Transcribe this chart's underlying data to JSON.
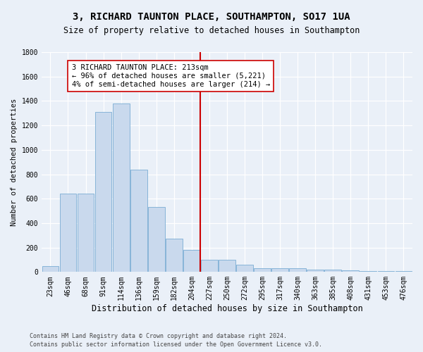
{
  "title1": "3, RICHARD TAUNTON PLACE, SOUTHAMPTON, SO17 1UA",
  "title2": "Size of property relative to detached houses in Southampton",
  "xlabel": "Distribution of detached houses by size in Southampton",
  "ylabel": "Number of detached properties",
  "categories": [
    "23sqm",
    "46sqm",
    "68sqm",
    "91sqm",
    "114sqm",
    "136sqm",
    "159sqm",
    "182sqm",
    "204sqm",
    "227sqm",
    "250sqm",
    "272sqm",
    "295sqm",
    "317sqm",
    "340sqm",
    "363sqm",
    "385sqm",
    "408sqm",
    "431sqm",
    "453sqm",
    "476sqm"
  ],
  "values": [
    50,
    640,
    640,
    1310,
    1380,
    840,
    530,
    270,
    180,
    100,
    100,
    60,
    30,
    30,
    30,
    20,
    20,
    15,
    10,
    10,
    10
  ],
  "bar_color": "#c9d9ed",
  "bar_edge_color": "#7aadd4",
  "highlight_line_color": "#cc0000",
  "annotation_text": "3 RICHARD TAUNTON PLACE: 213sqm\n← 96% of detached houses are smaller (5,221)\n4% of semi-detached houses are larger (214) →",
  "annotation_box_color": "#ffffff",
  "annotation_box_edge": "#cc0000",
  "ylim": [
    0,
    1800
  ],
  "yticks": [
    0,
    200,
    400,
    600,
    800,
    1000,
    1200,
    1400,
    1600,
    1800
  ],
  "footer1": "Contains HM Land Registry data © Crown copyright and database right 2024.",
  "footer2": "Contains public sector information licensed under the Open Government Licence v3.0.",
  "bg_color": "#eaf0f8",
  "grid_color": "#ffffff",
  "title1_fontsize": 10,
  "title2_fontsize": 8.5,
  "xlabel_fontsize": 8.5,
  "ylabel_fontsize": 7.5,
  "tick_fontsize": 7,
  "annot_fontsize": 7.5,
  "footer_fontsize": 6
}
